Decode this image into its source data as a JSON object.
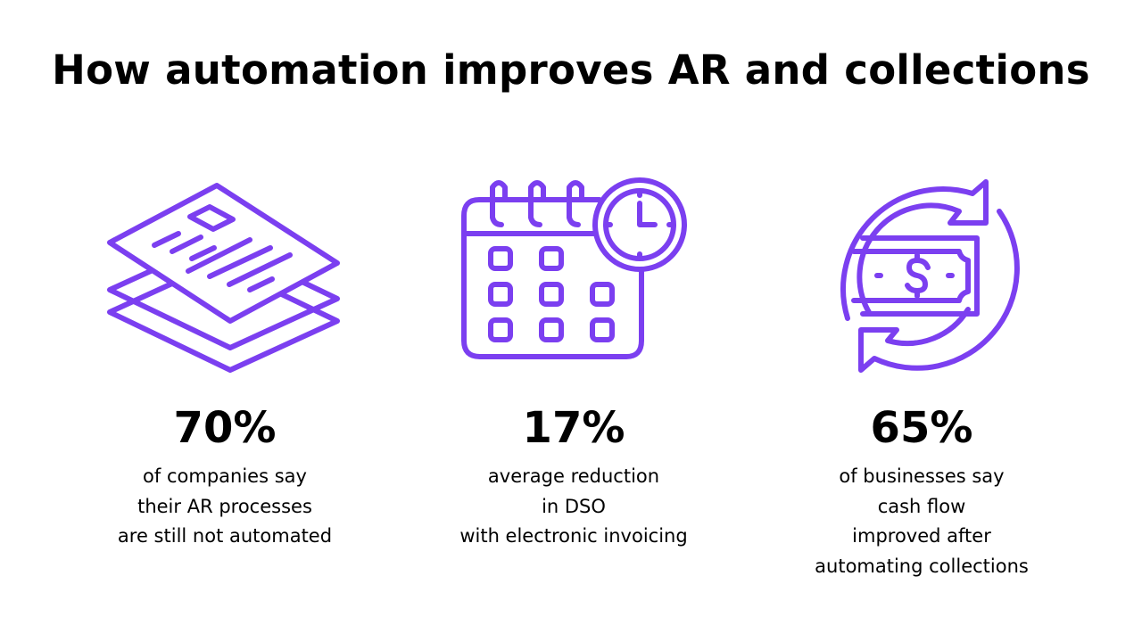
{
  "title": "How automation improves AR and collections",
  "accent_color": "#7b3ff0",
  "stats": [
    {
      "icon": "documents-icon",
      "value": "70%",
      "lines": [
        "of companies say",
        "their AR processes",
        "are still not automated"
      ]
    },
    {
      "icon": "calendar-clock-icon",
      "value": "17%",
      "lines": [
        "average reduction",
        "in DSO",
        "with electronic invoicing"
      ]
    },
    {
      "icon": "cash-cycle-icon",
      "value": "65%",
      "lines": [
        "of businesses say",
        "cash flow",
        "improved after",
        "automating collections"
      ]
    }
  ]
}
